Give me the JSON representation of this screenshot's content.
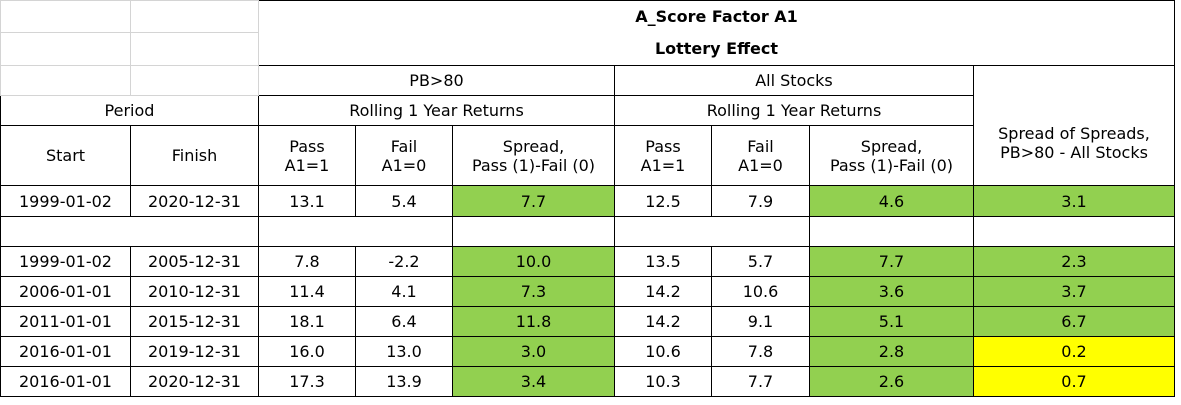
{
  "title": "A_Score Factor A1",
  "subtitle": "Lottery Effect",
  "groups": {
    "pb80": "PB>80",
    "all": "All Stocks"
  },
  "period_label": "Period",
  "rolling_label": "Rolling 1 Year Returns",
  "headers": {
    "start": "Start",
    "finish": "Finish",
    "pass_1": "Pass",
    "pass_2": "A1=1",
    "fail_1": "Fail",
    "fail_2": "A1=0",
    "spread_1": "Spread,",
    "spread_2": "Pass (1)-Fail (0)",
    "sos_1": "Spread of Spreads,",
    "sos_2": "PB>80 - All Stocks"
  },
  "colors": {
    "green": "#92d050",
    "yellow": "#ffff00"
  },
  "rows": [
    {
      "start": "1999-01-02",
      "finish": "2020-12-31",
      "pb_pass": "13.1",
      "pb_fail": "5.4",
      "pb_spread": "7.7",
      "all_pass": "12.5",
      "all_fail": "7.9",
      "all_spread": "4.6",
      "sos": "3.1",
      "sos_color": "green"
    },
    {
      "start": "1999-01-02",
      "finish": "2005-12-31",
      "pb_pass": "7.8",
      "pb_fail": "-2.2",
      "pb_spread": "10.0",
      "all_pass": "13.5",
      "all_fail": "5.7",
      "all_spread": "7.7",
      "sos": "2.3",
      "sos_color": "green"
    },
    {
      "start": "2006-01-01",
      "finish": "2010-12-31",
      "pb_pass": "11.4",
      "pb_fail": "4.1",
      "pb_spread": "7.3",
      "all_pass": "14.2",
      "all_fail": "10.6",
      "all_spread": "3.6",
      "sos": "3.7",
      "sos_color": "green"
    },
    {
      "start": "2011-01-01",
      "finish": "2015-12-31",
      "pb_pass": "18.1",
      "pb_fail": "6.4",
      "pb_spread": "11.8",
      "all_pass": "14.2",
      "all_fail": "9.1",
      "all_spread": "5.1",
      "sos": "6.7",
      "sos_color": "green"
    },
    {
      "start": "2016-01-01",
      "finish": "2019-12-31",
      "pb_pass": "16.0",
      "pb_fail": "13.0",
      "pb_spread": "3.0",
      "all_pass": "10.6",
      "all_fail": "7.8",
      "all_spread": "2.8",
      "sos": "0.2",
      "sos_color": "yellow"
    },
    {
      "start": "2016-01-01",
      "finish": "2020-12-31",
      "pb_pass": "17.3",
      "pb_fail": "13.9",
      "pb_spread": "3.4",
      "all_pass": "10.3",
      "all_fail": "7.7",
      "all_spread": "2.6",
      "sos": "0.7",
      "sos_color": "yellow"
    }
  ]
}
